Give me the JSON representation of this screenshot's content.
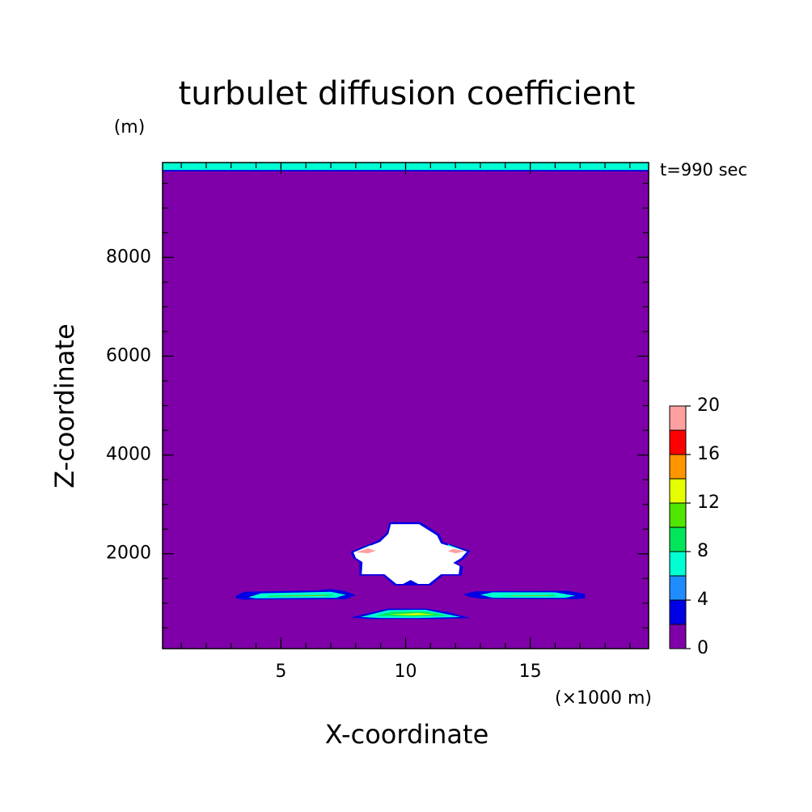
{
  "chart_data": {
    "type": "contour",
    "title": "turbulet diffusion coefficient",
    "xlabel": "X-coordinate",
    "ylabel": "Z-coordinate",
    "x_unit": "(×1000 m)",
    "y_unit": "(m)",
    "time_label": "t=990 sec",
    "xlim": [
      0.25,
      19.75
    ],
    "ylim": [
      80,
      9920
    ],
    "xticks": [
      5,
      10,
      15
    ],
    "yticks": [
      2000,
      4000,
      6000,
      8000
    ],
    "xminorticks": [
      1,
      2,
      3,
      4,
      5,
      6,
      7,
      8,
      9,
      10,
      11,
      12,
      13,
      14,
      15,
      16,
      17,
      18,
      19
    ],
    "yminorticks": [
      500,
      1000,
      1500,
      2000,
      2500,
      3000,
      3500,
      4000,
      4500,
      5000,
      5500,
      6000,
      6500,
      7000,
      7500,
      8000,
      8500,
      9000,
      9500
    ],
    "colorbar": {
      "levels": [
        0,
        2,
        4,
        6,
        8,
        10,
        12,
        14,
        16,
        18,
        20
      ],
      "ticks": [
        0,
        4,
        8,
        12,
        16,
        20
      ],
      "colors": [
        "#7f00a8",
        "#0000e6",
        "#1e8cff",
        "#00ffd2",
        "#00e65a",
        "#50e600",
        "#e6ff00",
        "#ff9600",
        "#ff0000",
        "#ffa0a0"
      ],
      "over_color": "#ffffff"
    },
    "regions": [
      {
        "level": 1,
        "points": [
          [
            0.25,
            9740
          ],
          [
            19.75,
            9740
          ],
          [
            19.75,
            9770
          ],
          [
            0.25,
            9770
          ]
        ]
      },
      {
        "level": 3,
        "points": [
          [
            0.25,
            9770
          ],
          [
            19.75,
            9770
          ],
          [
            19.75,
            9920
          ],
          [
            0.25,
            9920
          ]
        ]
      },
      {
        "level": 1,
        "points": [
          [
            3.2,
            1150
          ],
          [
            3.5,
            1230
          ],
          [
            6.5,
            1260
          ],
          [
            7.0,
            1290
          ],
          [
            7.6,
            1240
          ],
          [
            8.0,
            1160
          ],
          [
            7.6,
            1080
          ],
          [
            3.5,
            1070
          ],
          [
            3.2,
            1100
          ]
        ]
      },
      {
        "level": 3,
        "points": [
          [
            3.7,
            1120
          ],
          [
            4.2,
            1200
          ],
          [
            7.0,
            1230
          ],
          [
            7.6,
            1170
          ],
          [
            7.2,
            1110
          ],
          [
            4.0,
            1100
          ]
        ]
      },
      {
        "level": 4,
        "points": [
          [
            4.5,
            1150
          ],
          [
            7.0,
            1175
          ],
          [
            7.2,
            1150
          ],
          [
            4.5,
            1130
          ]
        ]
      },
      {
        "level": 7,
        "points": [
          [
            5.0,
            1148
          ],
          [
            6.8,
            1158
          ],
          [
            6.8,
            1150
          ],
          [
            5.0,
            1142
          ]
        ]
      },
      {
        "level": 1,
        "points": [
          [
            12.3,
            1180
          ],
          [
            12.8,
            1240
          ],
          [
            16.5,
            1250
          ],
          [
            17.2,
            1190
          ],
          [
            17.2,
            1100
          ],
          [
            16.8,
            1080
          ],
          [
            13.0,
            1090
          ],
          [
            12.6,
            1120
          ]
        ]
      },
      {
        "level": 3,
        "points": [
          [
            13.0,
            1170
          ],
          [
            13.5,
            1220
          ],
          [
            16.0,
            1220
          ],
          [
            16.8,
            1150
          ],
          [
            16.4,
            1110
          ],
          [
            13.5,
            1110
          ]
        ]
      },
      {
        "level": 4,
        "points": [
          [
            13.8,
            1150
          ],
          [
            16.0,
            1168
          ],
          [
            16.0,
            1145
          ],
          [
            13.8,
            1138
          ]
        ]
      },
      {
        "level": 7,
        "points": [
          [
            14.2,
            1152
          ],
          [
            15.8,
            1160
          ],
          [
            15.8,
            1152
          ],
          [
            14.2,
            1146
          ]
        ]
      },
      {
        "level": 1,
        "points": [
          [
            7.8,
            710
          ],
          [
            8.5,
            800
          ],
          [
            9.3,
            890
          ],
          [
            10.8,
            890
          ],
          [
            11.7,
            820
          ],
          [
            12.6,
            700
          ],
          [
            11.5,
            680
          ],
          [
            8.5,
            680
          ]
        ]
      },
      {
        "level": 3,
        "points": [
          [
            8.2,
            720
          ],
          [
            9.3,
            860
          ],
          [
            10.8,
            865
          ],
          [
            12.2,
            720
          ],
          [
            10.5,
            700
          ],
          [
            9.0,
            700
          ]
        ]
      },
      {
        "level": 4,
        "points": [
          [
            8.8,
            750
          ],
          [
            9.5,
            830
          ],
          [
            10.8,
            830
          ],
          [
            11.7,
            750
          ],
          [
            10.3,
            730
          ]
        ]
      },
      {
        "level": 6,
        "points": [
          [
            9.3,
            770
          ],
          [
            10.5,
            800
          ],
          [
            11.2,
            770
          ],
          [
            10.3,
            755
          ]
        ]
      },
      {
        "level": 1,
        "points": [
          [
            9.35,
            2640
          ],
          [
            10.6,
            2640
          ],
          [
            11.35,
            2400
          ],
          [
            11.5,
            2240
          ],
          [
            12.6,
            2060
          ],
          [
            12.35,
            1900
          ],
          [
            12.05,
            1810
          ],
          [
            12.3,
            1740
          ],
          [
            12.25,
            1560
          ],
          [
            11.5,
            1560
          ],
          [
            11.0,
            1360
          ],
          [
            9.55,
            1360
          ],
          [
            9.1,
            1560
          ],
          [
            8.15,
            1560
          ],
          [
            8.15,
            1830
          ],
          [
            7.9,
            1913
          ],
          [
            7.8,
            2040
          ],
          [
            8.9,
            2270
          ],
          [
            9.25,
            2430
          ]
        ]
      },
      {
        "level": 3,
        "points": [
          [
            7.92,
            2030
          ],
          [
            8.6,
            2180
          ],
          [
            8.7,
            2010
          ],
          [
            8.1,
            1910
          ]
        ]
      },
      {
        "level": 3,
        "points": [
          [
            12.45,
            2045
          ],
          [
            11.7,
            2190
          ],
          [
            11.6,
            2000
          ],
          [
            12.2,
            1915
          ]
        ]
      },
      {
        "level": 10,
        "points": [
          [
            9.41,
            2600
          ],
          [
            10.54,
            2600
          ],
          [
            11.26,
            2371
          ],
          [
            11.42,
            2208
          ],
          [
            12.46,
            2044
          ],
          [
            12.23,
            1913
          ],
          [
            11.91,
            1815
          ],
          [
            12.17,
            1749
          ],
          [
            12.13,
            1586
          ],
          [
            11.42,
            1586
          ],
          [
            10.93,
            1389
          ],
          [
            9.63,
            1389
          ],
          [
            9.15,
            1586
          ],
          [
            8.24,
            1586
          ],
          [
            8.27,
            1831
          ],
          [
            8.01,
            1913
          ],
          [
            7.91,
            2028
          ],
          [
            8.98,
            2241
          ],
          [
            9.31,
            2404
          ]
        ]
      },
      {
        "level": 1,
        "points": [
          [
            9.9,
            1390
          ],
          [
            10.2,
            1470
          ],
          [
            10.5,
            1390
          ]
        ]
      },
      {
        "level": 9,
        "points": [
          [
            8.0,
            2030
          ],
          [
            8.5,
            2110
          ],
          [
            8.8,
            2060
          ],
          [
            8.5,
            2010
          ]
        ]
      },
      {
        "level": 9,
        "points": [
          [
            11.9,
            2100
          ],
          [
            12.4,
            2050
          ],
          [
            12.0,
            2010
          ],
          [
            11.7,
            2050
          ]
        ]
      }
    ]
  }
}
